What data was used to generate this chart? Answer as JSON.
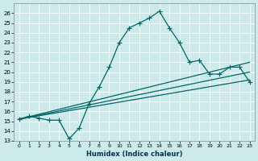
{
  "xlabel": "Humidex (Indice chaleur)",
  "background_color": "#cceaea",
  "line_color": "#006666",
  "grid_color": "#aad4d4",
  "xlim": [
    -0.5,
    23.5
  ],
  "ylim": [
    13,
    27
  ],
  "yticks": [
    13,
    14,
    15,
    16,
    17,
    18,
    19,
    20,
    21,
    22,
    23,
    24,
    25,
    26
  ],
  "xticks": [
    0,
    1,
    2,
    3,
    4,
    5,
    6,
    7,
    8,
    9,
    10,
    11,
    12,
    13,
    14,
    15,
    16,
    17,
    18,
    19,
    20,
    21,
    22,
    23
  ],
  "xtick_labels": [
    "0",
    "1",
    "2",
    "3",
    "4",
    "5",
    "6",
    "7",
    "8",
    "9",
    "10",
    "11",
    "12",
    "13",
    "14",
    "15",
    "16",
    "17",
    "18",
    "19",
    "20",
    "21",
    "22",
    "23"
  ],
  "series": [
    {
      "x": [
        0,
        1,
        2,
        3,
        4,
        5,
        6,
        7,
        8,
        9,
        10,
        11,
        12,
        13,
        14,
        15,
        16,
        17,
        18,
        19,
        20,
        21,
        22,
        23
      ],
      "y": [
        15.2,
        15.5,
        15.3,
        15.1,
        15.1,
        13.2,
        14.3,
        16.8,
        18.5,
        20.5,
        23.0,
        24.5,
        25.0,
        25.5,
        26.2,
        24.5,
        23.0,
        21.0,
        21.2,
        19.8,
        19.8,
        20.5,
        20.5,
        19.0
      ],
      "marker": "+",
      "marker_size": 4,
      "line_width": 0.9
    },
    {
      "x": [
        0,
        23
      ],
      "y": [
        15.2,
        21.0
      ],
      "marker": null,
      "line_width": 0.9
    },
    {
      "x": [
        0,
        23
      ],
      "y": [
        15.2,
        20.0
      ],
      "marker": null,
      "line_width": 0.9
    },
    {
      "x": [
        0,
        23
      ],
      "y": [
        15.2,
        19.2
      ],
      "marker": null,
      "line_width": 0.9
    }
  ]
}
